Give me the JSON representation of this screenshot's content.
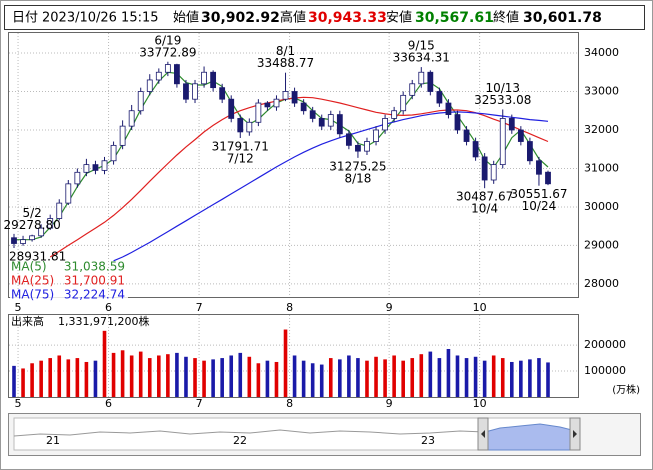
{
  "header": {
    "date_label": "日付",
    "date": "2023/10/26 15:15",
    "items": [
      {
        "label": "始値",
        "value": "30,902.92"
      },
      {
        "label": "高値",
        "value": "30,943.33"
      },
      {
        "label": "安値",
        "value": "30,567.61"
      },
      {
        "label": "終値",
        "value": "30,601.78"
      }
    ]
  },
  "chart_data": {
    "type": "candlestick",
    "categories": [
      null,
      "5",
      null,
      null,
      null,
      null,
      null,
      null,
      null,
      null,
      null,
      "6",
      null,
      null,
      null,
      null,
      null,
      null,
      null,
      null,
      null,
      "7",
      null,
      null,
      null,
      null,
      null,
      null,
      null,
      null,
      null,
      "8",
      null,
      null,
      null,
      null,
      null,
      null,
      null,
      null,
      null,
      null,
      "9",
      null,
      null,
      null,
      null,
      null,
      null,
      null,
      null,
      null,
      "10",
      null,
      null,
      null,
      null,
      null,
      null,
      null
    ],
    "open": [
      29200,
      29050,
      29150,
      29250,
      29450,
      29700,
      30100,
      30600,
      30900,
      31100,
      30950,
      31200,
      31600,
      32100,
      32500,
      33000,
      33300,
      33500,
      33700,
      33200,
      32800,
      33200,
      33500,
      33100,
      32800,
      32300,
      31950,
      32200,
      32700,
      32600,
      32800,
      33000,
      32700,
      32500,
      32300,
      32100,
      32400,
      31900,
      31600,
      31450,
      31700,
      32000,
      32300,
      32500,
      32900,
      33200,
      33500,
      33000,
      32700,
      32400,
      32000,
      31700,
      31300,
      30700,
      31100,
      32300,
      32000,
      31700,
      31200,
      30902.92
    ],
    "high": [
      29300,
      29250,
      29278.8,
      29550,
      29800,
      30200,
      30700,
      31000,
      31250,
      31200,
      31300,
      31700,
      32250,
      32650,
      33100,
      33450,
      33600,
      33772.89,
      33720,
      33300,
      33300,
      33650,
      33550,
      33200,
      32900,
      32400,
      32300,
      32800,
      32750,
      32900,
      33488.77,
      33100,
      32800,
      32600,
      32400,
      32500,
      32500,
      32000,
      31700,
      31800,
      32100,
      32400,
      32600,
      33000,
      33300,
      33634.31,
      33550,
      33100,
      32800,
      32500,
      32100,
      31800,
      31400,
      31200,
      32533.08,
      32400,
      32100,
      31800,
      31300,
      30943.33
    ],
    "low": [
      28931.81,
      28990,
      29100,
      29200,
      29400,
      29650,
      30050,
      30500,
      30800,
      30850,
      30850,
      31100,
      31500,
      32000,
      32400,
      32900,
      33200,
      33400,
      33100,
      32700,
      32700,
      33100,
      33000,
      32700,
      32200,
      31791.71,
      31850,
      32100,
      32500,
      32500,
      32750,
      32600,
      32400,
      32200,
      32000,
      32000,
      31800,
      31500,
      31275.25,
      31350,
      31600,
      31900,
      32200,
      32400,
      32800,
      33100,
      32900,
      32600,
      32300,
      31900,
      31600,
      31200,
      30487.67,
      30600,
      31000,
      31900,
      31600,
      31100,
      30551.67,
      30567.61
    ],
    "close": [
      29050,
      29150,
      29250,
      29450,
      29700,
      30100,
      30600,
      30900,
      31100,
      30950,
      31200,
      31600,
      32100,
      32500,
      33000,
      33300,
      33500,
      33700,
      33200,
      32800,
      33200,
      33500,
      33100,
      32800,
      32300,
      31950,
      32200,
      32700,
      32600,
      32800,
      33000,
      32700,
      32500,
      32300,
      32100,
      32400,
      31900,
      31600,
      31450,
      31700,
      32000,
      32300,
      32500,
      32900,
      33200,
      33500,
      33000,
      32700,
      32400,
      32000,
      31700,
      31300,
      30700,
      31100,
      32300,
      32000,
      31700,
      31200,
      30850,
      30601.78
    ],
    "up_color": "#ffffff",
    "down_color": "#1a1a6e",
    "ylim": [
      27660,
      34520
    ],
    "yticks": [
      28000,
      29000,
      30000,
      31000,
      32000,
      33000,
      34000
    ],
    "grid": true,
    "ma": [
      {
        "name": "MA(5)",
        "color": "#2e8b2e",
        "current_label": "31,038.59",
        "values": [
          29150,
          29150,
          29150,
          29220,
          29470,
          29750,
          30130,
          30530,
          30870,
          30980,
          31080,
          31250,
          31630,
          32070,
          32530,
          32930,
          33270,
          33500,
          33470,
          33230,
          33170,
          33170,
          33270,
          33130,
          32730,
          32350,
          32150,
          32280,
          32500,
          32700,
          32800,
          32830,
          32730,
          32500,
          32300,
          32270,
          32130,
          31970,
          31650,
          31580,
          31720,
          32000,
          32270,
          32570,
          32870,
          33200,
          33230,
          33070,
          32700,
          32370,
          32030,
          31670,
          31230,
          31030,
          31370,
          31800,
          32000,
          31630,
          31250,
          31038.59
        ]
      },
      {
        "name": "MA(25)",
        "color": "#e02020",
        "current_label": "31,700.91",
        "values": [
          null,
          null,
          null,
          null,
          28700,
          28850,
          29000,
          29150,
          29300,
          29450,
          29600,
          29780,
          29980,
          30200,
          30430,
          30670,
          30900,
          31130,
          31350,
          31560,
          31750,
          31950,
          32120,
          32270,
          32400,
          32500,
          32580,
          32650,
          32700,
          32750,
          32800,
          32830,
          32850,
          32840,
          32800,
          32750,
          32700,
          32640,
          32580,
          32520,
          32460,
          32420,
          32390,
          32380,
          32390,
          32420,
          32460,
          32500,
          32520,
          32520,
          32500,
          32450,
          32370,
          32280,
          32200,
          32100,
          32000,
          31900,
          31800,
          31700.91
        ]
      },
      {
        "name": "MA(75)",
        "color": "#2020e0",
        "current_label": "32,224.74",
        "values": [
          null,
          null,
          null,
          null,
          null,
          null,
          null,
          null,
          null,
          null,
          null,
          28600,
          28700,
          28820,
          28950,
          29080,
          29220,
          29360,
          29500,
          29640,
          29780,
          29920,
          30060,
          30200,
          30340,
          30480,
          30620,
          30760,
          30900,
          31040,
          31170,
          31300,
          31420,
          31530,
          31630,
          31720,
          31800,
          31870,
          31940,
          32010,
          32080,
          32150,
          32210,
          32270,
          32320,
          32370,
          32410,
          32440,
          32460,
          32470,
          32460,
          32440,
          32420,
          32390,
          32360,
          32330,
          32300,
          32270,
          32250,
          32224.74
        ]
      }
    ],
    "annotations": [
      {
        "date": "6/19",
        "value": 33772.89
      },
      {
        "date": "7/12",
        "value": 31791.71
      },
      {
        "date": "8/1",
        "value": 33488.77
      },
      {
        "date": "8/18",
        "value": 31275.25
      },
      {
        "date": "9/15",
        "value": 33634.31
      },
      {
        "date": "10/13",
        "value": 32533.08
      },
      {
        "date": "10/4",
        "value": 30487.67
      },
      {
        "date": "10/24",
        "value": 30551.67
      },
      {
        "date": "5/2",
        "value": 29278.8,
        "label": "29278.80"
      },
      {
        "value": 28931.81
      }
    ],
    "volume": {
      "type": "bar",
      "title": "出来高",
      "total_label": "1,331,971,200株",
      "unit": "(万株)",
      "up_color": "#e00000",
      "down_color": "#1a1aa8",
      "values": [
        120000,
        110000,
        130000,
        140000,
        150000,
        160000,
        145000,
        150000,
        135000,
        140000,
        255000,
        170000,
        180000,
        160000,
        175000,
        150000,
        160000,
        165000,
        170000,
        155000,
        150000,
        140000,
        145000,
        150000,
        160000,
        170000,
        155000,
        130000,
        140000,
        135000,
        260000,
        160000,
        140000,
        130000,
        125000,
        150000,
        145000,
        160000,
        150000,
        140000,
        155000,
        145000,
        160000,
        140000,
        150000,
        165000,
        175000,
        150000,
        185000,
        160000,
        150000,
        155000,
        140000,
        160000,
        150000,
        135000,
        140000,
        145000,
        150000,
        133197.12
      ],
      "ylim": [
        0,
        316000
      ],
      "yticks": [
        100000,
        200000
      ]
    }
  },
  "navigator": {
    "labels": [
      "21",
      "22",
      "23"
    ]
  }
}
